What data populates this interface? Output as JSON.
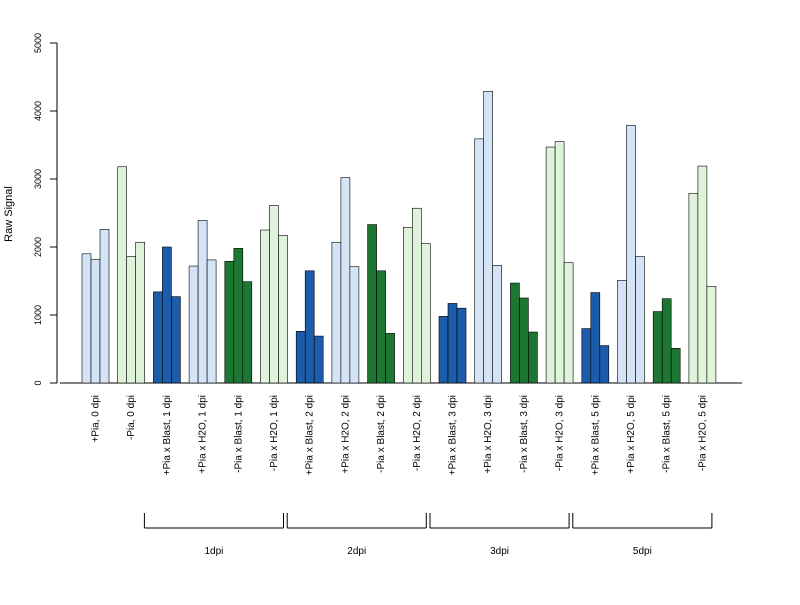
{
  "chart_data": {
    "type": "bar",
    "ylabel": "Raw Signal",
    "ylim": [
      0,
      5000
    ],
    "yticks": [
      0,
      1000,
      2000,
      3000,
      4000,
      5000
    ],
    "categories": [
      "+Pia, 0 dpi",
      "-Pia, 0 dpi",
      "+Pia x Blast, 1 dpi",
      "+Pia x H2O, 1 dpi",
      "-Pia x Blast, 1 dpi",
      "-Pia x H2O, 1 dpi",
      "+Pia x Blast, 2 dpi",
      "+Pia x H2O, 2 dpi",
      "-Pia x Blast, 2 dpi",
      "-Pia x H2O, 2 dpi",
      "+Pia x Blast, 3 dpi",
      "+Pia x H2O, 3 dpi",
      "-Pia x Blast, 3 dpi",
      "-Pia x H2O, 3 dpi",
      "+Pia x Blast, 5 dpi",
      "+Pia x H2O, 5 dpi",
      "-Pia x Blast, 5 dpi",
      "-Pia x H2O, 5 dpi"
    ],
    "colors": [
      "#d4e4f6",
      "#dff3db",
      "#1c5cab",
      "#d4e4f6",
      "#1d7733",
      "#dff3db",
      "#1c5cab",
      "#d4e4f6",
      "#1d7733",
      "#dff3db",
      "#1c5cab",
      "#d4e4f6",
      "#1d7733",
      "#dff3db",
      "#1c5cab",
      "#d4e4f6",
      "#1d7733",
      "#dff3db"
    ],
    "replicates": [
      [
        1900,
        1820,
        2260
      ],
      [
        3180,
        1860,
        2070
      ],
      [
        1340,
        2000,
        1270
      ],
      [
        1720,
        2390,
        1810
      ],
      [
        1790,
        1980,
        1490
      ],
      [
        2250,
        2610,
        2170
      ],
      [
        760,
        1650,
        690
      ],
      [
        2070,
        3020,
        1710
      ],
      [
        2330,
        1650,
        730
      ],
      [
        2290,
        2570,
        2050
      ],
      [
        980,
        1170,
        1100
      ],
      [
        3590,
        4290,
        1730
      ],
      [
        1470,
        1250,
        750
      ],
      [
        3470,
        3550,
        1770
      ],
      [
        800,
        1330,
        550
      ],
      [
        1510,
        3790,
        1860
      ],
      [
        1050,
        1240,
        510
      ],
      [
        2790,
        3190,
        1420
      ]
    ],
    "groups": [
      {
        "label": "1dpi",
        "start": 2,
        "end": 5
      },
      {
        "label": "2dpi",
        "start": 6,
        "end": 9
      },
      {
        "label": "3dpi",
        "start": 10,
        "end": 13
      },
      {
        "label": "5dpi",
        "start": 14,
        "end": 17
      }
    ]
  }
}
